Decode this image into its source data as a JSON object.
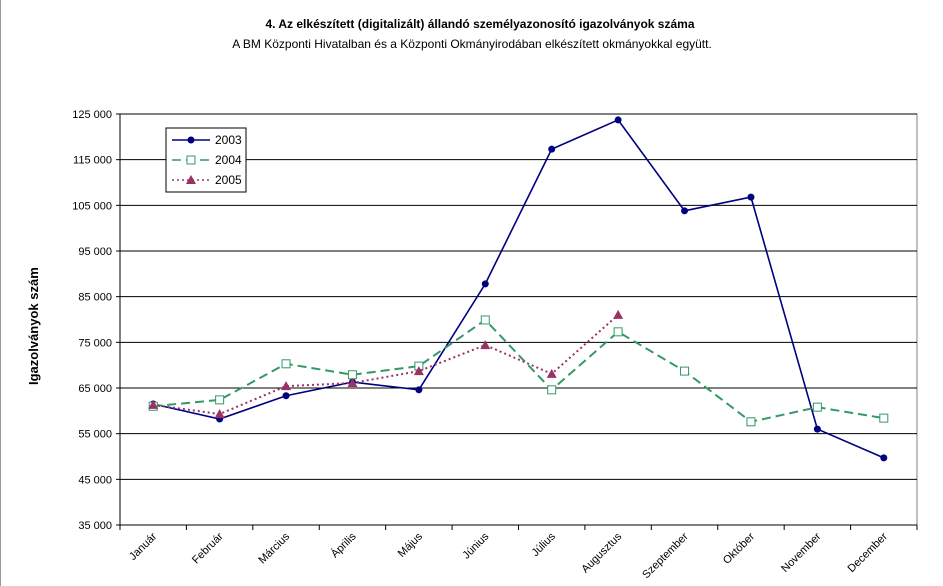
{
  "chart_data": {
    "type": "line",
    "title": "4. Az elkészített (digitalizált) állandó személyazonosító igazolványok száma",
    "subtitle": "A BM Központi Hivatalban és a Központi Okmányirodában elkészített okmányokkal együtt.",
    "y_label": "Igazolványok szám",
    "categories": [
      "Január",
      "Február",
      "Március",
      "Április",
      "Május",
      "Június",
      "Július",
      "Augusztus",
      "Szeptember",
      "Október",
      "November",
      "December"
    ],
    "series": [
      {
        "name": "2003",
        "color": "#000080",
        "dash": "solid",
        "marker": "circle",
        "values": [
          61500,
          58200,
          63300,
          66300,
          64600,
          87800,
          117300,
          123700,
          103800,
          106800,
          56000,
          49700
        ]
      },
      {
        "name": "2004",
        "color": "#339966",
        "dash": "dashed",
        "marker": "square",
        "values": [
          61000,
          62400,
          70300,
          67900,
          69800,
          79900,
          64600,
          77300,
          68700,
          57600,
          60800,
          58400
        ]
      },
      {
        "name": "2005",
        "color": "#993366",
        "dash": "dotted",
        "marker": "triangle",
        "values": [
          61300,
          59300,
          65400,
          66100,
          68700,
          74400,
          68100,
          81000,
          null,
          null,
          null,
          null
        ]
      }
    ],
    "ylim": [
      35000,
      125000
    ],
    "yticks": [
      {
        "value": 35000,
        "label": "35 000"
      },
      {
        "value": 45000,
        "label": "45 000"
      },
      {
        "value": 55000,
        "label": "55 000"
      },
      {
        "value": 65000,
        "label": "65 000"
      },
      {
        "value": 75000,
        "label": "75 000"
      },
      {
        "value": 85000,
        "label": "85 000"
      },
      {
        "value": 95000,
        "label": "95 000"
      },
      {
        "value": 105000,
        "label": "105 000"
      },
      {
        "value": 115000,
        "label": "115 000"
      },
      {
        "value": 125000,
        "label": "125 000"
      }
    ],
    "grid": true,
    "legend": "upper left"
  }
}
